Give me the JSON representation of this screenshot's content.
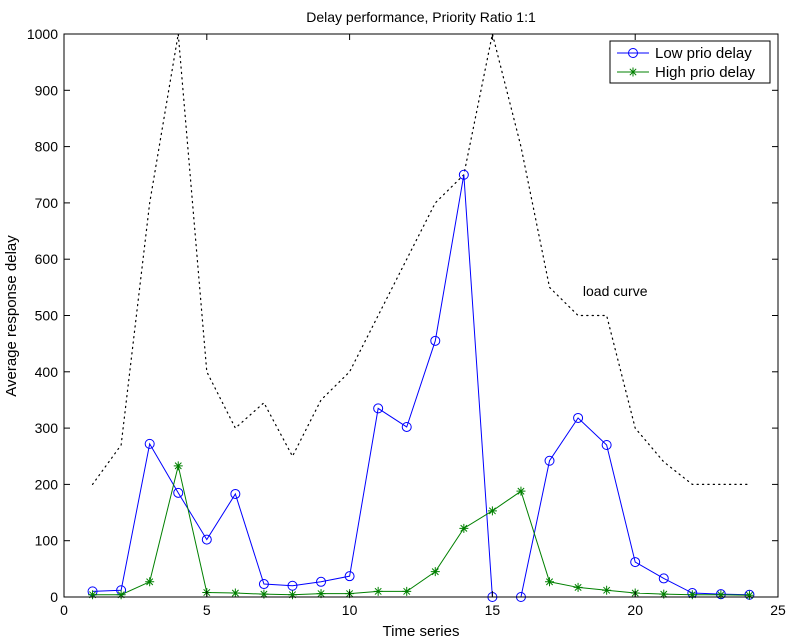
{
  "chart_data": {
    "type": "line",
    "title": "Delay performance, Priority Ratio 1:1",
    "xlabel": "Time series",
    "ylabel": "Average response delay",
    "xlim": [
      0,
      25
    ],
    "ylim": [
      0,
      1000
    ],
    "xticks": [
      0,
      5,
      10,
      15,
      20,
      25
    ],
    "yticks": [
      0,
      100,
      200,
      300,
      400,
      500,
      600,
      700,
      800,
      900,
      1000
    ],
    "grid": false,
    "legend_position": "top-right",
    "series": [
      {
        "name": "Low prio delay",
        "color": "#0000ff",
        "marker": "circle",
        "x": [
          1,
          2,
          3,
          4,
          5,
          6,
          7,
          8,
          9,
          10,
          11,
          12,
          13,
          14,
          15,
          16,
          17,
          18,
          19,
          20,
          21,
          22,
          23,
          24
        ],
        "values": [
          10,
          12,
          272,
          185,
          102,
          183,
          23,
          20,
          27,
          37,
          335,
          302,
          455,
          750,
          0,
          0,
          242,
          318,
          270,
          62,
          33,
          7,
          5,
          4
        ]
      },
      {
        "name": "High prio delay",
        "color": "#008000",
        "marker": "star",
        "x": [
          1,
          2,
          3,
          4,
          5,
          6,
          7,
          8,
          9,
          10,
          11,
          12,
          13,
          14,
          15,
          16,
          17,
          18,
          19,
          20,
          21,
          22,
          23,
          24
        ],
        "values": [
          4,
          4,
          27,
          233,
          8,
          7,
          5,
          4,
          6,
          6,
          10,
          10,
          45,
          122,
          153,
          188,
          27,
          17,
          12,
          7,
          5,
          4,
          4,
          3
        ]
      }
    ],
    "load_curve": {
      "color": "#000000",
      "style": "dotted",
      "x": [
        1,
        2,
        3,
        4,
        5,
        6,
        7,
        8,
        9,
        10,
        11,
        12,
        13,
        14,
        15,
        16,
        17,
        18,
        19,
        20,
        21,
        22,
        23,
        24
      ],
      "values": [
        200,
        270,
        700,
        1000,
        400,
        300,
        345,
        250,
        350,
        400,
        500,
        600,
        700,
        750,
        1000,
        800,
        550,
        500,
        500,
        300,
        240,
        200,
        200,
        200
      ]
    },
    "annotations": [
      {
        "text": "load curve",
        "x": 19.3,
        "y": 535
      }
    ]
  }
}
